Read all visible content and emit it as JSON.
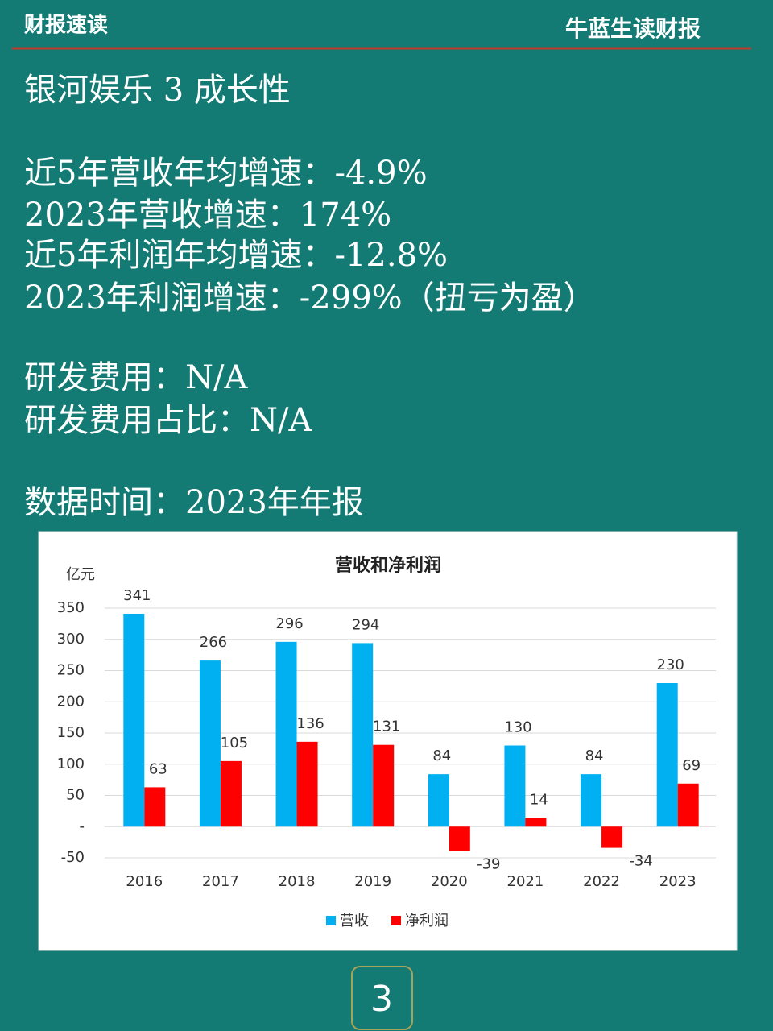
{
  "header": {
    "left": "财报速读",
    "right": "牛蓝生读财报"
  },
  "title": "银河娱乐 3 成长性",
  "lines": [
    "近5年营收年均增速：-4.9%",
    "2023年营收增速：174%",
    "近5年利润年均增速：-12.8%",
    "2023年利润增速：-299%（扭亏为盈）",
    "研发费用：N/A",
    "研发费用占比：N/A",
    "数据时间：2023年年报"
  ],
  "chart_data": {
    "type": "bar",
    "title": "营收和净利润",
    "y_label": "亿元",
    "categories": [
      "2016",
      "2017",
      "2018",
      "2019",
      "2020",
      "2021",
      "2022",
      "2023"
    ],
    "series": [
      {
        "name": "营收",
        "color": "#00b0f0",
        "values": [
          341,
          266,
          296,
          294,
          84,
          130,
          84,
          230
        ]
      },
      {
        "name": "净利润",
        "color": "#ff0000",
        "values": [
          63,
          105,
          136,
          131,
          -39,
          14,
          -34,
          69
        ]
      }
    ],
    "ylim": [
      -50,
      350
    ],
    "yticks": [
      -50,
      {
        "value": 0,
        "label": "-"
      },
      50,
      100,
      150,
      200,
      250,
      300,
      350
    ],
    "grid": true,
    "legend": "bottom"
  },
  "page_number": "3"
}
